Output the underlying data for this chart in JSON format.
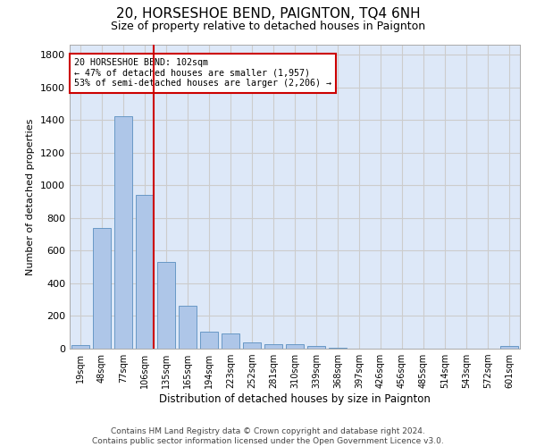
{
  "title": "20, HORSESHOE BEND, PAIGNTON, TQ4 6NH",
  "subtitle": "Size of property relative to detached houses in Paignton",
  "xlabel": "Distribution of detached houses by size in Paignton",
  "ylabel": "Number of detached properties",
  "footer_line1": "Contains HM Land Registry data © Crown copyright and database right 2024.",
  "footer_line2": "Contains public sector information licensed under the Open Government Licence v3.0.",
  "categories": [
    "19sqm",
    "48sqm",
    "77sqm",
    "106sqm",
    "135sqm",
    "165sqm",
    "194sqm",
    "223sqm",
    "252sqm",
    "281sqm",
    "310sqm",
    "339sqm",
    "368sqm",
    "397sqm",
    "426sqm",
    "456sqm",
    "485sqm",
    "514sqm",
    "543sqm",
    "572sqm",
    "601sqm"
  ],
  "values": [
    20,
    740,
    1420,
    940,
    530,
    265,
    105,
    95,
    40,
    28,
    25,
    15,
    5,
    2,
    2,
    2,
    2,
    2,
    2,
    2,
    15
  ],
  "bar_color": "#aec6e8",
  "bar_edge_color": "#5a8fc0",
  "vline_x_index": 3,
  "vline_color": "#cc0000",
  "annotation_text": "20 HORSESHOE BEND: 102sqm\n← 47% of detached houses are smaller (1,957)\n53% of semi-detached houses are larger (2,206) →",
  "annotation_box_color": "#cc0000",
  "ylim": [
    0,
    1860
  ],
  "yticks": [
    0,
    200,
    400,
    600,
    800,
    1000,
    1200,
    1400,
    1600,
    1800
  ],
  "grid_color": "#cccccc",
  "bg_color": "#dde8f8",
  "title_fontsize": 11,
  "subtitle_fontsize": 9,
  "footer_fontsize": 6.5
}
